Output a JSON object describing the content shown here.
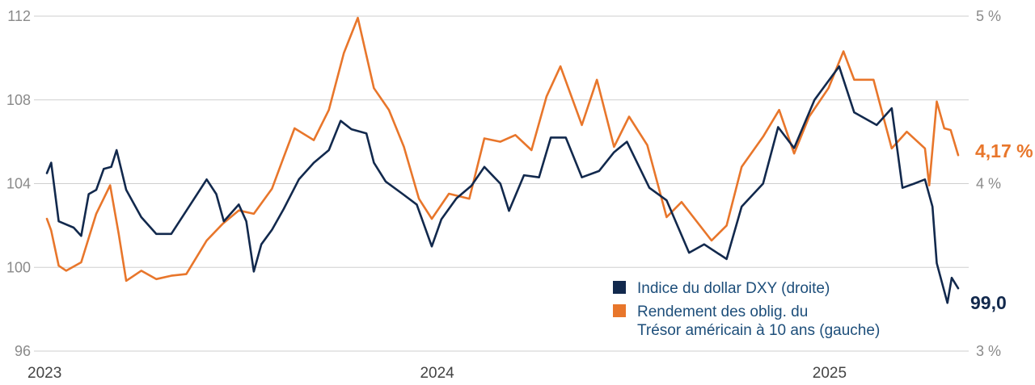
{
  "chart_data": {
    "type": "line",
    "title": "",
    "xlabel": "",
    "ylabel": "",
    "x_ticks": [
      "2023",
      "2024",
      "2025"
    ],
    "left_axis": {
      "ticks": [
        "96",
        "100",
        "104",
        "108",
        "112"
      ],
      "ylim": [
        96,
        112
      ]
    },
    "right_axis": {
      "ticks": [
        "3 %",
        "4 %",
        "5 %"
      ],
      "ylim": [
        3,
        5
      ]
    },
    "grid": true,
    "legend_position": "bottom-right",
    "series": [
      {
        "name": "Indice du dollar DXY (droite)",
        "color": "#12294d",
        "axis": "left",
        "end_label": "99,0",
        "points": [
          [
            "2023-01-02",
            104.5
          ],
          [
            "2023-01-06",
            105.0
          ],
          [
            "2023-01-13",
            102.2
          ],
          [
            "2023-01-27",
            101.9
          ],
          [
            "2023-02-03",
            101.5
          ],
          [
            "2023-02-10",
            103.5
          ],
          [
            "2023-02-17",
            103.7
          ],
          [
            "2023-02-24",
            104.7
          ],
          [
            "2023-03-03",
            104.8
          ],
          [
            "2023-03-08",
            105.6
          ],
          [
            "2023-03-17",
            103.7
          ],
          [
            "2023-03-31",
            102.4
          ],
          [
            "2023-04-14",
            101.6
          ],
          [
            "2023-04-28",
            101.6
          ],
          [
            "2023-05-12",
            102.7
          ],
          [
            "2023-05-31",
            104.2
          ],
          [
            "2023-06-09",
            103.5
          ],
          [
            "2023-06-16",
            102.2
          ],
          [
            "2023-06-30",
            103.0
          ],
          [
            "2023-07-07",
            102.2
          ],
          [
            "2023-07-14",
            99.8
          ],
          [
            "2023-07-21",
            101.1
          ],
          [
            "2023-07-31",
            101.8
          ],
          [
            "2023-08-11",
            102.8
          ],
          [
            "2023-08-25",
            104.2
          ],
          [
            "2023-09-08",
            105.0
          ],
          [
            "2023-09-22",
            105.6
          ],
          [
            "2023-10-03",
            107.0
          ],
          [
            "2023-10-13",
            106.6
          ],
          [
            "2023-10-27",
            106.4
          ],
          [
            "2023-11-03",
            105.0
          ],
          [
            "2023-11-14",
            104.1
          ],
          [
            "2023-11-30",
            103.5
          ],
          [
            "2023-12-13",
            103.0
          ],
          [
            "2023-12-27",
            101.0
          ],
          [
            "2024-01-05",
            102.3
          ],
          [
            "2024-01-19",
            103.3
          ],
          [
            "2024-02-02",
            103.9
          ],
          [
            "2024-02-14",
            104.8
          ],
          [
            "2024-02-29",
            104.0
          ],
          [
            "2024-03-08",
            102.7
          ],
          [
            "2024-03-22",
            104.4
          ],
          [
            "2024-04-05",
            104.3
          ],
          [
            "2024-04-16",
            106.2
          ],
          [
            "2024-04-30",
            106.2
          ],
          [
            "2024-05-15",
            104.3
          ],
          [
            "2024-05-31",
            104.6
          ],
          [
            "2024-06-14",
            105.5
          ],
          [
            "2024-06-26",
            106.0
          ],
          [
            "2024-07-17",
            103.8
          ],
          [
            "2024-08-02",
            103.2
          ],
          [
            "2024-08-23",
            100.7
          ],
          [
            "2024-09-06",
            101.1
          ],
          [
            "2024-09-27",
            100.4
          ],
          [
            "2024-10-11",
            102.9
          ],
          [
            "2024-10-31",
            104.0
          ],
          [
            "2024-11-14",
            106.7
          ],
          [
            "2024-11-29",
            105.7
          ],
          [
            "2024-12-18",
            108.0
          ],
          [
            "2025-01-10",
            109.6
          ],
          [
            "2025-01-24",
            107.4
          ],
          [
            "2025-02-14",
            106.8
          ],
          [
            "2025-02-28",
            107.6
          ],
          [
            "2025-03-10",
            103.8
          ],
          [
            "2025-03-21",
            104.0
          ],
          [
            "2025-03-31",
            104.2
          ],
          [
            "2025-04-07",
            102.9
          ],
          [
            "2025-04-11",
            100.2
          ],
          [
            "2025-04-21",
            98.3
          ],
          [
            "2025-04-25",
            99.5
          ],
          [
            "2025-05-01",
            99.0
          ]
        ]
      },
      {
        "name": "Rendement des oblig. du Trésor américain à 10 ans (gauche)",
        "color": "#e8762b",
        "axis": "right",
        "end_label": "4,17 %",
        "points": [
          [
            "2023-01-02",
            3.79
          ],
          [
            "2023-01-06",
            3.72
          ],
          [
            "2023-01-13",
            3.51
          ],
          [
            "2023-01-20",
            3.48
          ],
          [
            "2023-02-03",
            3.53
          ],
          [
            "2023-02-17",
            3.82
          ],
          [
            "2023-03-02",
            3.99
          ],
          [
            "2023-03-10",
            3.7
          ],
          [
            "2023-03-17",
            3.42
          ],
          [
            "2023-03-31",
            3.48
          ],
          [
            "2023-04-14",
            3.43
          ],
          [
            "2023-04-28",
            3.45
          ],
          [
            "2023-05-12",
            3.46
          ],
          [
            "2023-05-31",
            3.66
          ],
          [
            "2023-06-15",
            3.76
          ],
          [
            "2023-06-30",
            3.84
          ],
          [
            "2023-07-14",
            3.82
          ],
          [
            "2023-07-31",
            3.97
          ],
          [
            "2023-08-11",
            4.16
          ],
          [
            "2023-08-21",
            4.33
          ],
          [
            "2023-09-08",
            4.26
          ],
          [
            "2023-09-22",
            4.44
          ],
          [
            "2023-10-06",
            4.78
          ],
          [
            "2023-10-19",
            4.99
          ],
          [
            "2023-11-03",
            4.57
          ],
          [
            "2023-11-17",
            4.44
          ],
          [
            "2023-12-01",
            4.22
          ],
          [
            "2023-12-15",
            3.91
          ],
          [
            "2023-12-27",
            3.79
          ],
          [
            "2024-01-12",
            3.94
          ],
          [
            "2024-01-31",
            3.91
          ],
          [
            "2024-02-14",
            4.27
          ],
          [
            "2024-02-29",
            4.25
          ],
          [
            "2024-03-14",
            4.29
          ],
          [
            "2024-03-29",
            4.2
          ],
          [
            "2024-04-12",
            4.52
          ],
          [
            "2024-04-25",
            4.7
          ],
          [
            "2024-05-15",
            4.35
          ],
          [
            "2024-05-29",
            4.62
          ],
          [
            "2024-06-14",
            4.22
          ],
          [
            "2024-06-28",
            4.4
          ],
          [
            "2024-07-15",
            4.23
          ],
          [
            "2024-08-02",
            3.8
          ],
          [
            "2024-08-16",
            3.89
          ],
          [
            "2024-09-13",
            3.66
          ],
          [
            "2024-09-27",
            3.75
          ],
          [
            "2024-10-11",
            4.1
          ],
          [
            "2024-10-31",
            4.28
          ],
          [
            "2024-11-15",
            4.44
          ],
          [
            "2024-11-29",
            4.18
          ],
          [
            "2024-12-13",
            4.4
          ],
          [
            "2024-12-31",
            4.57
          ],
          [
            "2025-01-14",
            4.79
          ],
          [
            "2025-01-24",
            4.62
          ],
          [
            "2025-02-11",
            4.62
          ],
          [
            "2025-02-28",
            4.21
          ],
          [
            "2025-03-14",
            4.31
          ],
          [
            "2025-03-31",
            4.21
          ],
          [
            "2025-04-04",
            3.99
          ],
          [
            "2025-04-11",
            4.49
          ],
          [
            "2025-04-18",
            4.33
          ],
          [
            "2025-04-24",
            4.32
          ],
          [
            "2025-05-01",
            4.17
          ]
        ]
      }
    ]
  }
}
